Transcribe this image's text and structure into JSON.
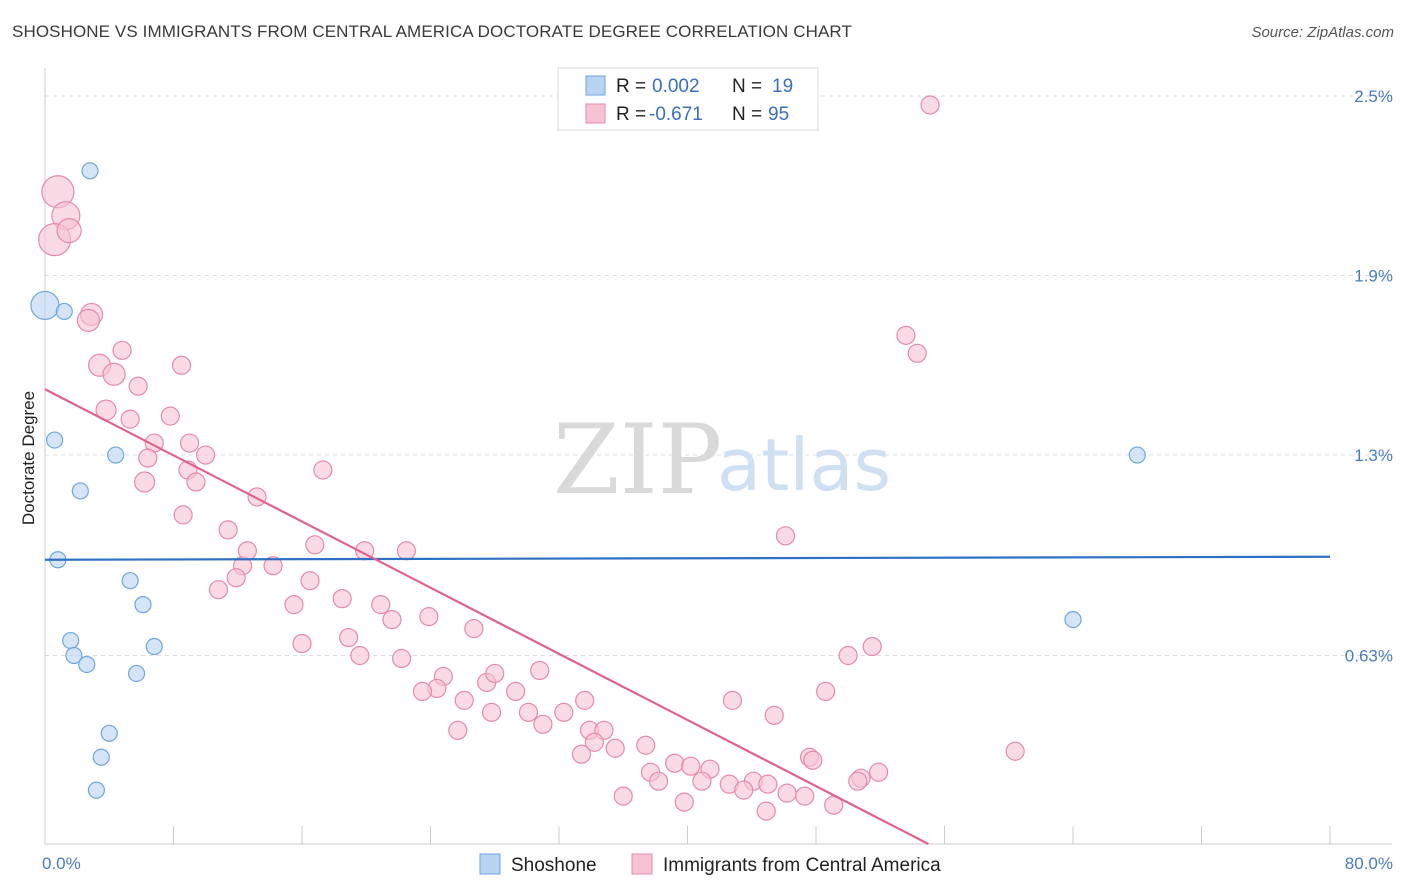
{
  "title": "SHOSHONE VS IMMIGRANTS FROM CENTRAL AMERICA DOCTORATE DEGREE CORRELATION CHART",
  "source": "Source: ZipAtlas.com",
  "watermark": {
    "zip": "ZIP",
    "atlas": "atlas"
  },
  "chart_data": {
    "type": "scatter",
    "ylabel": "Doctorate Degree",
    "xlabel": "",
    "xlim": [
      0,
      80
    ],
    "ylim": [
      0,
      2.5
    ],
    "x_ticks": [
      0,
      8,
      16,
      24,
      32,
      40,
      48,
      56,
      64,
      72,
      80
    ],
    "x_tick_labels": [
      "0.0%",
      "80.0%"
    ],
    "y_ticks": [
      0.63,
      1.3,
      1.9,
      2.5
    ],
    "y_tick_labels": [
      "0.63%",
      "1.3%",
      "1.9%",
      "2.5%"
    ],
    "grid": "horizontal dashed",
    "legend_position": "top-center",
    "legend": [
      {
        "r_label": "R = ",
        "r_value": "0.002",
        "n_label": "N = ",
        "n_value": "19"
      },
      {
        "r_label": "R = ",
        "r_value": "-0.671",
        "n_label": "N = ",
        "n_value": "95"
      }
    ],
    "series": [
      {
        "name": "Shoshone",
        "color": "#6ea6e0",
        "fill": "#b9d3f2",
        "trend": {
          "x": [
            0,
            80
          ],
          "y": [
            0.95,
            0.96
          ],
          "color": "#2f6fc4"
        },
        "points": [
          {
            "x": 0.0,
            "y": 1.8,
            "s": 14
          },
          {
            "x": 1.2,
            "y": 1.78,
            "s": 8
          },
          {
            "x": 2.8,
            "y": 2.25,
            "s": 8
          },
          {
            "x": 0.6,
            "y": 1.35,
            "s": 8
          },
          {
            "x": 4.4,
            "y": 1.3,
            "s": 8
          },
          {
            "x": 2.2,
            "y": 1.18,
            "s": 8
          },
          {
            "x": 0.8,
            "y": 0.95,
            "s": 8
          },
          {
            "x": 5.3,
            "y": 0.88,
            "s": 8
          },
          {
            "x": 6.1,
            "y": 0.8,
            "s": 8
          },
          {
            "x": 1.6,
            "y": 0.68,
            "s": 8
          },
          {
            "x": 1.8,
            "y": 0.63,
            "s": 8
          },
          {
            "x": 2.6,
            "y": 0.6,
            "s": 8
          },
          {
            "x": 6.8,
            "y": 0.66,
            "s": 8
          },
          {
            "x": 5.7,
            "y": 0.57,
            "s": 8
          },
          {
            "x": 4.0,
            "y": 0.37,
            "s": 8
          },
          {
            "x": 3.5,
            "y": 0.29,
            "s": 8
          },
          {
            "x": 3.2,
            "y": 0.18,
            "s": 8
          },
          {
            "x": 68.0,
            "y": 1.3,
            "s": 8
          },
          {
            "x": 64.0,
            "y": 0.75,
            "s": 8
          }
        ]
      },
      {
        "name": "Immigrants from Central America",
        "color": "#e58aa8",
        "fill": "#f7c3d4",
        "trend": {
          "x": [
            0,
            55
          ],
          "y": [
            1.52,
            0.0
          ],
          "color": "#e06090"
        },
        "points": [
          {
            "x": 0.8,
            "y": 2.18,
            "s": 16
          },
          {
            "x": 1.3,
            "y": 2.1,
            "s": 14
          },
          {
            "x": 0.6,
            "y": 2.02,
            "s": 16
          },
          {
            "x": 1.5,
            "y": 2.05,
            "s": 12
          },
          {
            "x": 2.9,
            "y": 1.77,
            "s": 11
          },
          {
            "x": 2.7,
            "y": 1.75,
            "s": 11
          },
          {
            "x": 4.8,
            "y": 1.65,
            "s": 9
          },
          {
            "x": 3.4,
            "y": 1.6,
            "s": 11
          },
          {
            "x": 4.3,
            "y": 1.57,
            "s": 11
          },
          {
            "x": 8.5,
            "y": 1.6,
            "s": 9
          },
          {
            "x": 5.8,
            "y": 1.53,
            "s": 9
          },
          {
            "x": 3.8,
            "y": 1.45,
            "s": 10
          },
          {
            "x": 5.3,
            "y": 1.42,
            "s": 9
          },
          {
            "x": 7.8,
            "y": 1.43,
            "s": 9
          },
          {
            "x": 6.8,
            "y": 1.34,
            "s": 9
          },
          {
            "x": 9.0,
            "y": 1.34,
            "s": 9
          },
          {
            "x": 6.4,
            "y": 1.29,
            "s": 9
          },
          {
            "x": 8.9,
            "y": 1.25,
            "s": 9
          },
          {
            "x": 10.0,
            "y": 1.3,
            "s": 9
          },
          {
            "x": 6.2,
            "y": 1.21,
            "s": 10
          },
          {
            "x": 9.4,
            "y": 1.21,
            "s": 9
          },
          {
            "x": 13.2,
            "y": 1.16,
            "s": 9
          },
          {
            "x": 17.3,
            "y": 1.25,
            "s": 9
          },
          {
            "x": 11.4,
            "y": 1.05,
            "s": 9
          },
          {
            "x": 8.6,
            "y": 1.1,
            "s": 9
          },
          {
            "x": 19.9,
            "y": 0.98,
            "s": 9
          },
          {
            "x": 16.8,
            "y": 1.0,
            "s": 9
          },
          {
            "x": 22.5,
            "y": 0.98,
            "s": 9
          },
          {
            "x": 14.2,
            "y": 0.93,
            "s": 9
          },
          {
            "x": 12.3,
            "y": 0.93,
            "s": 9
          },
          {
            "x": 16.5,
            "y": 0.88,
            "s": 9
          },
          {
            "x": 10.8,
            "y": 0.85,
            "s": 9
          },
          {
            "x": 11.9,
            "y": 0.89,
            "s": 9
          },
          {
            "x": 15.5,
            "y": 0.8,
            "s": 9
          },
          {
            "x": 18.5,
            "y": 0.82,
            "s": 9
          },
          {
            "x": 20.9,
            "y": 0.8,
            "s": 9
          },
          {
            "x": 21.6,
            "y": 0.75,
            "s": 9
          },
          {
            "x": 23.9,
            "y": 0.76,
            "s": 9
          },
          {
            "x": 26.7,
            "y": 0.72,
            "s": 9
          },
          {
            "x": 16.0,
            "y": 0.67,
            "s": 9
          },
          {
            "x": 19.6,
            "y": 0.63,
            "s": 9
          },
          {
            "x": 18.9,
            "y": 0.69,
            "s": 9
          },
          {
            "x": 22.2,
            "y": 0.62,
            "s": 9
          },
          {
            "x": 24.8,
            "y": 0.56,
            "s": 9
          },
          {
            "x": 27.5,
            "y": 0.54,
            "s": 9
          },
          {
            "x": 28.0,
            "y": 0.57,
            "s": 9
          },
          {
            "x": 30.8,
            "y": 0.58,
            "s": 9
          },
          {
            "x": 24.4,
            "y": 0.52,
            "s": 9
          },
          {
            "x": 23.5,
            "y": 0.51,
            "s": 9
          },
          {
            "x": 29.3,
            "y": 0.51,
            "s": 9
          },
          {
            "x": 33.6,
            "y": 0.48,
            "s": 9
          },
          {
            "x": 26.1,
            "y": 0.48,
            "s": 9
          },
          {
            "x": 27.8,
            "y": 0.44,
            "s": 9
          },
          {
            "x": 30.1,
            "y": 0.44,
            "s": 9
          },
          {
            "x": 32.3,
            "y": 0.44,
            "s": 9
          },
          {
            "x": 25.7,
            "y": 0.38,
            "s": 9
          },
          {
            "x": 31.0,
            "y": 0.4,
            "s": 9
          },
          {
            "x": 33.9,
            "y": 0.38,
            "s": 9
          },
          {
            "x": 34.8,
            "y": 0.38,
            "s": 9
          },
          {
            "x": 34.2,
            "y": 0.34,
            "s": 9
          },
          {
            "x": 35.5,
            "y": 0.32,
            "s": 9
          },
          {
            "x": 37.4,
            "y": 0.33,
            "s": 9
          },
          {
            "x": 33.4,
            "y": 0.3,
            "s": 9
          },
          {
            "x": 37.7,
            "y": 0.24,
            "s": 9
          },
          {
            "x": 39.2,
            "y": 0.27,
            "s": 9
          },
          {
            "x": 40.2,
            "y": 0.26,
            "s": 9
          },
          {
            "x": 41.4,
            "y": 0.25,
            "s": 9
          },
          {
            "x": 38.2,
            "y": 0.21,
            "s": 9
          },
          {
            "x": 40.9,
            "y": 0.21,
            "s": 9
          },
          {
            "x": 42.6,
            "y": 0.2,
            "s": 9
          },
          {
            "x": 44.1,
            "y": 0.21,
            "s": 9
          },
          {
            "x": 43.5,
            "y": 0.18,
            "s": 9
          },
          {
            "x": 47.6,
            "y": 0.29,
            "s": 9
          },
          {
            "x": 47.8,
            "y": 0.28,
            "s": 9
          },
          {
            "x": 50.8,
            "y": 0.22,
            "s": 9
          },
          {
            "x": 45.0,
            "y": 0.2,
            "s": 9
          },
          {
            "x": 46.2,
            "y": 0.17,
            "s": 9
          },
          {
            "x": 47.3,
            "y": 0.16,
            "s": 9
          },
          {
            "x": 36.0,
            "y": 0.16,
            "s": 9
          },
          {
            "x": 39.8,
            "y": 0.14,
            "s": 9
          },
          {
            "x": 44.9,
            "y": 0.11,
            "s": 9
          },
          {
            "x": 49.1,
            "y": 0.13,
            "s": 9
          },
          {
            "x": 50.6,
            "y": 0.21,
            "s": 9
          },
          {
            "x": 42.8,
            "y": 0.48,
            "s": 9
          },
          {
            "x": 45.4,
            "y": 0.43,
            "s": 9
          },
          {
            "x": 48.6,
            "y": 0.51,
            "s": 9
          },
          {
            "x": 51.9,
            "y": 0.24,
            "s": 9
          },
          {
            "x": 46.1,
            "y": 1.03,
            "s": 9
          },
          {
            "x": 50.0,
            "y": 0.63,
            "s": 9
          },
          {
            "x": 51.5,
            "y": 0.66,
            "s": 9
          },
          {
            "x": 53.6,
            "y": 1.7,
            "s": 9
          },
          {
            "x": 54.3,
            "y": 1.64,
            "s": 9
          },
          {
            "x": 55.1,
            "y": 2.47,
            "s": 9
          },
          {
            "x": 60.4,
            "y": 0.31,
            "s": 9
          },
          {
            "x": 12.6,
            "y": 0.98,
            "s": 9
          }
        ]
      }
    ]
  },
  "bottom_legend": [
    {
      "label": "Shoshone"
    },
    {
      "label": "Immigrants from Central America"
    }
  ]
}
